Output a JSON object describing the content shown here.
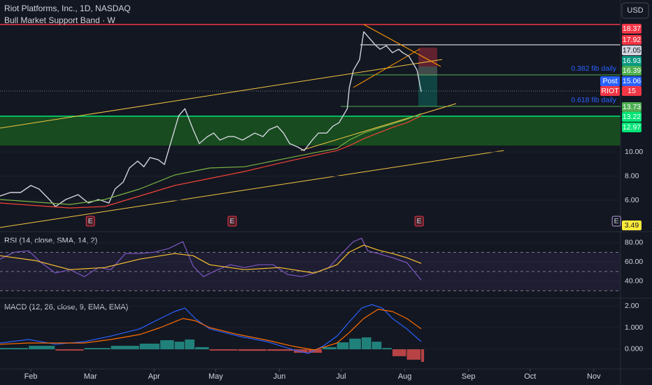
{
  "header": {
    "currency": "USD"
  },
  "chart_data": [
    {
      "type": "line",
      "title": "Riot Platforms, Inc., 1D, NASDAQ",
      "subtitle": "Bull Market Support Band · W",
      "xlim": [
        17,
        319
      ],
      "xticks": [
        {
          "value": 32,
          "label": "Feb"
        },
        {
          "value": 61,
          "label": "Mar"
        },
        {
          "value": 92,
          "label": "Apr"
        },
        {
          "value": 122,
          "label": "May"
        },
        {
          "value": 153,
          "label": "Jun"
        },
        {
          "value": 183,
          "label": "Jul"
        },
        {
          "value": 214,
          "label": "Aug"
        },
        {
          "value": 245,
          "label": "Sep"
        },
        {
          "value": 275,
          "label": "Oct"
        },
        {
          "value": 306,
          "label": "Nov"
        }
      ],
      "ylim": [
        3.45,
        22.6
      ],
      "yticks": [
        {
          "value": 6,
          "label": "6.00"
        },
        {
          "value": 8,
          "label": "8.00"
        },
        {
          "value": 10,
          "label": "10.00"
        }
      ],
      "series": [
        {
          "color": "#d1d4dc",
          "x": [
            17,
            22,
            27,
            32,
            36,
            41,
            44,
            49,
            55,
            60,
            65,
            70,
            73,
            77,
            80,
            84,
            87,
            90,
            94,
            97,
            101,
            104,
            107,
            111,
            114,
            118,
            121,
            124,
            128,
            131,
            135,
            138,
            141,
            145,
            148,
            152,
            155,
            158,
            162,
            165,
            169,
            172,
            176,
            179,
            182,
            186,
            187,
            189,
            192,
            194,
            197,
            200,
            202,
            205,
            208,
            211,
            213,
            216,
            218,
            220,
            222
          ],
          "values": [
            6.35,
            6.64,
            6.64,
            7.22,
            6.93,
            6.06,
            5.48,
            6.06,
            6.46,
            5.77,
            6.06,
            5.77,
            6.93,
            7.51,
            8.67,
            9.25,
            8.78,
            9.54,
            9.36,
            8.96,
            11.28,
            13.01,
            13.59,
            11.86,
            10.7,
            11.28,
            11.57,
            10.99,
            11.28,
            11.28,
            10.99,
            11.28,
            11.57,
            11.28,
            11.86,
            12.14,
            11.57,
            10.7,
            10.41,
            10.12,
            10.99,
            11.57,
            11.57,
            12.14,
            12.43,
            13.59,
            15.33,
            16.78,
            17.65,
            19.97,
            19.39,
            18.81,
            18.52,
            18.81,
            18.23,
            18.52,
            18.23,
            17.94,
            17.36,
            16.78,
            15.0
          ]
        },
        {
          "color": "#f44336",
          "x": [
            17,
            51,
            68,
            85,
            102,
            119,
            136,
            153,
            170,
            181,
            187,
            194,
            201,
            208,
            215,
            222
          ],
          "values": [
            5.77,
            5.36,
            5.48,
            6.35,
            7.22,
            7.8,
            8.38,
            9.07,
            9.71,
            10.12,
            10.52,
            11.1,
            11.57,
            12.03,
            12.43,
            13.01
          ]
        },
        {
          "color": "#7cb342",
          "x": [
            17,
            51,
            68,
            85,
            102,
            119,
            136,
            153,
            170,
            181,
            187,
            194,
            201,
            208,
            215,
            222
          ],
          "values": [
            6.06,
            5.65,
            6.06,
            6.93,
            8.09,
            8.67,
            8.78,
            9.36,
            9.94,
            10.29,
            10.99,
            11.57,
            11.97,
            12.32,
            12.72,
            13.19
          ]
        }
      ],
      "annotations": [
        {
          "text": "0.382 fib daily",
          "color": "#2962ff"
        },
        {
          "text": "0.618 fib daily",
          "color": "#2962ff"
        }
      ],
      "events": [
        {
          "x": 61,
          "label": "E"
        },
        {
          "x": 130,
          "label": "E"
        },
        {
          "x": 221,
          "label": "E"
        },
        {
          "x": 317,
          "label": "E"
        }
      ],
      "price_labels": [
        {
          "value": 18.37,
          "color": "#f23645"
        },
        {
          "value": 17.92,
          "color": "#f23645"
        },
        {
          "value": 17.05,
          "color": "#d1d4dc"
        },
        {
          "value": 16.93,
          "color": "#089981"
        },
        {
          "value": 16.39,
          "color": "#4caf50"
        },
        {
          "value": 15.06,
          "color": "#2962ff",
          "tag": "Post"
        },
        {
          "value": 15.0,
          "color": "#f23645",
          "tag": "RIOT"
        },
        {
          "value": 13.73,
          "color": "#4caf50"
        },
        {
          "value": 13.22,
          "color": "#00e676"
        },
        {
          "value": 12.97,
          "color": "#00e676"
        },
        {
          "value": 3.49,
          "color": "#ffeb3b"
        }
      ]
    },
    {
      "type": "line",
      "title": "RSI (14, close, SMA, 14, 2)",
      "ylim": [
        23,
        90
      ],
      "yticks": [
        {
          "value": 40,
          "label": "40.00"
        },
        {
          "value": 60,
          "label": "60.00"
        },
        {
          "value": 80,
          "label": "80.00"
        }
      ],
      "levels": [
        70,
        50,
        30
      ],
      "series": [
        {
          "color": "#7e57c2",
          "x": [
            17,
            24,
            31,
            37,
            44,
            51,
            58,
            65,
            71,
            78,
            85,
            92,
            99,
            106,
            111,
            116,
            123,
            129,
            136,
            143,
            150,
            157,
            164,
            170,
            177,
            184,
            189,
            193,
            196,
            201,
            208,
            215,
            222
          ],
          "values": [
            62.9,
            70.2,
            71.6,
            59.3,
            48.4,
            52.0,
            44.7,
            54.2,
            52.0,
            68.7,
            68.7,
            70.2,
            73.8,
            81.1,
            55.6,
            44.7,
            52.0,
            57.1,
            54.2,
            57.1,
            57.1,
            46.9,
            44.7,
            48.4,
            54.2,
            70.2,
            81.1,
            84.7,
            71.6,
            68.7,
            64.4,
            59.3,
            41.1
          ]
        },
        {
          "color": "#fbc02d",
          "x": [
            17,
            34,
            51,
            68,
            85,
            102,
            111,
            119,
            136,
            153,
            170,
            181,
            187,
            194,
            201,
            208,
            215,
            222
          ],
          "values": [
            66.5,
            61.5,
            52.0,
            54.2,
            62.9,
            68.7,
            66.5,
            57.1,
            52.0,
            54.2,
            48.4,
            57.1,
            70.2,
            77.5,
            72.4,
            68.7,
            64.4,
            58.5
          ]
        }
      ]
    },
    {
      "type": "line",
      "title": "MACD (12, 26, close, 9, EMA, EMA)",
      "ylim": [
        -0.84,
        2.29
      ],
      "yticks": [
        {
          "value": 0,
          "label": "0.000"
        },
        {
          "value": 1,
          "label": "1.000"
        },
        {
          "value": 2,
          "label": "2.00"
        }
      ],
      "histogram": {
        "colors": [
          "#26a69a",
          "#ef5350"
        ],
        "x": [
          17,
          31,
          44,
          58,
          71,
          85,
          95,
          102,
          107,
          112,
          119,
          133,
          147,
          160,
          167,
          174,
          181,
          187,
          193,
          198,
          203,
          208,
          215,
          222
        ],
        "values": [
          0.06,
          0.16,
          -0.06,
          0.06,
          0.16,
          0.26,
          0.42,
          0.35,
          0.45,
          0.1,
          -0.06,
          -0.07,
          -0.07,
          -0.16,
          -0.16,
          0.1,
          0.32,
          0.49,
          0.55,
          0.35,
          0.06,
          -0.32,
          -0.48,
          -0.58
        ]
      },
      "series": [
        {
          "color": "#2962ff",
          "x": [
            17,
            31,
            44,
            58,
            71,
            85,
            95,
            102,
            107,
            112,
            119,
            133,
            147,
            160,
            167,
            174,
            181,
            187,
            193,
            198,
            203,
            208,
            215,
            222
          ],
          "values": [
            0.29,
            0.45,
            0.23,
            0.35,
            0.61,
            0.94,
            1.42,
            1.74,
            1.9,
            1.42,
            0.94,
            0.61,
            0.35,
            -0.03,
            -0.19,
            0.13,
            0.61,
            1.26,
            1.9,
            2.06,
            1.9,
            1.42,
            0.94,
            0.35
          ]
        },
        {
          "color": "#ff6d00",
          "x": [
            17,
            31,
            44,
            58,
            71,
            85,
            95,
            106,
            112,
            119,
            133,
            147,
            160,
            170,
            181,
            187,
            194,
            201,
            208,
            215,
            222
          ],
          "values": [
            0.23,
            0.29,
            0.29,
            0.29,
            0.45,
            0.68,
            1.0,
            1.42,
            1.32,
            1.0,
            0.68,
            0.42,
            0.13,
            -0.03,
            0.29,
            0.77,
            1.42,
            1.84,
            1.74,
            1.42,
            0.94
          ]
        }
      ]
    }
  ]
}
